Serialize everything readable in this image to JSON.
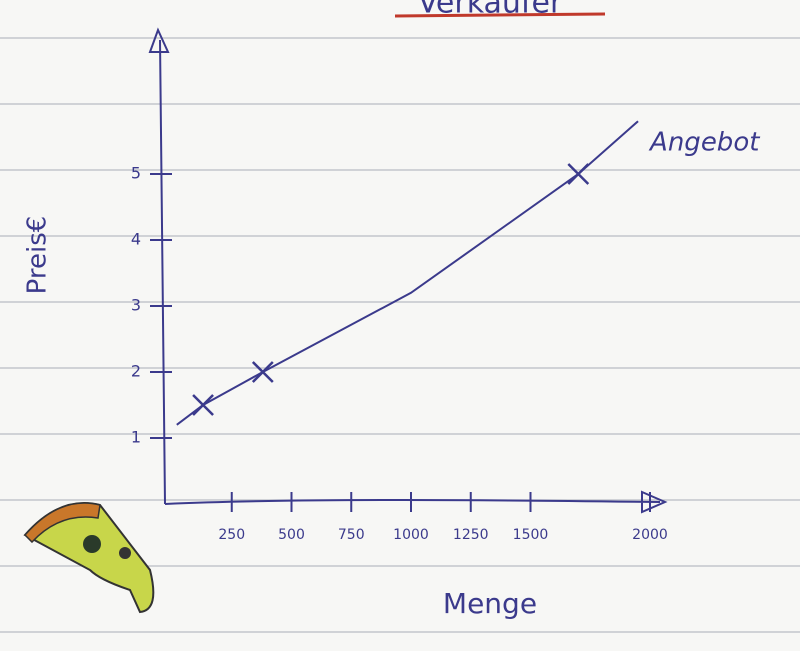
{
  "chart_data": {
    "type": "line",
    "title": "Verkäufer",
    "xlabel": "Menge",
    "ylabel": "Preis€",
    "series": [
      {
        "name": "Angebot",
        "color": "#3b3a8c",
        "x": [
          20,
          130,
          380,
          1000,
          1700,
          1950
        ],
        "values": [
          1.2,
          1.5,
          2,
          3.2,
          5,
          5.8
        ]
      }
    ],
    "points": {
      "x": [
        130,
        380,
        1700
      ],
      "values": [
        1.5,
        2,
        5
      ]
    },
    "xlim": [
      0,
      2000
    ],
    "ylim": [
      0,
      7
    ],
    "xticks": [
      250,
      500,
      750,
      1000,
      1250,
      1500,
      2000
    ],
    "yticks": [
      1,
      2,
      3,
      4,
      5
    ]
  }
}
